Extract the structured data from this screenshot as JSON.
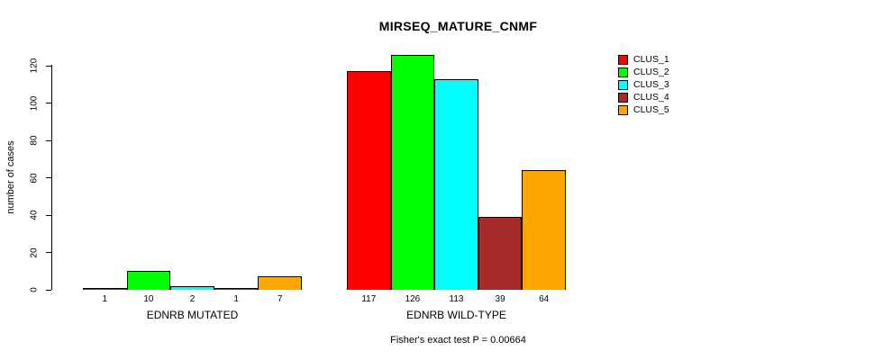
{
  "title": "MIRSEQ_MATURE_CNMF",
  "y_axis_label": "number of cases",
  "footer": "Fisher's exact test P = 0.00664",
  "chart_data": {
    "type": "bar",
    "title": "MIRSEQ_MATURE_CNMF",
    "xlabel": "",
    "ylabel": "number of cases",
    "ylim": [
      0,
      120
    ],
    "yticks": [
      0,
      20,
      40,
      60,
      80,
      100,
      120
    ],
    "grid": false,
    "legend_position": "top-right",
    "series": [
      {
        "name": "CLUS_1",
        "color": "#FF0000"
      },
      {
        "name": "CLUS_2",
        "color": "#00FF00"
      },
      {
        "name": "CLUS_3",
        "color": "#00FFFF"
      },
      {
        "name": "CLUS_4",
        "color": "#A52A2A"
      },
      {
        "name": "CLUS_5",
        "color": "#FFA500"
      }
    ],
    "groups": [
      {
        "label": "EDNRB MUTATED",
        "values": [
          1,
          10,
          2,
          1,
          7
        ]
      },
      {
        "label": "EDNRB WILD-TYPE",
        "values": [
          117,
          126,
          113,
          39,
          64
        ]
      }
    ],
    "annotation": "Fisher's exact test P = 0.00664"
  }
}
